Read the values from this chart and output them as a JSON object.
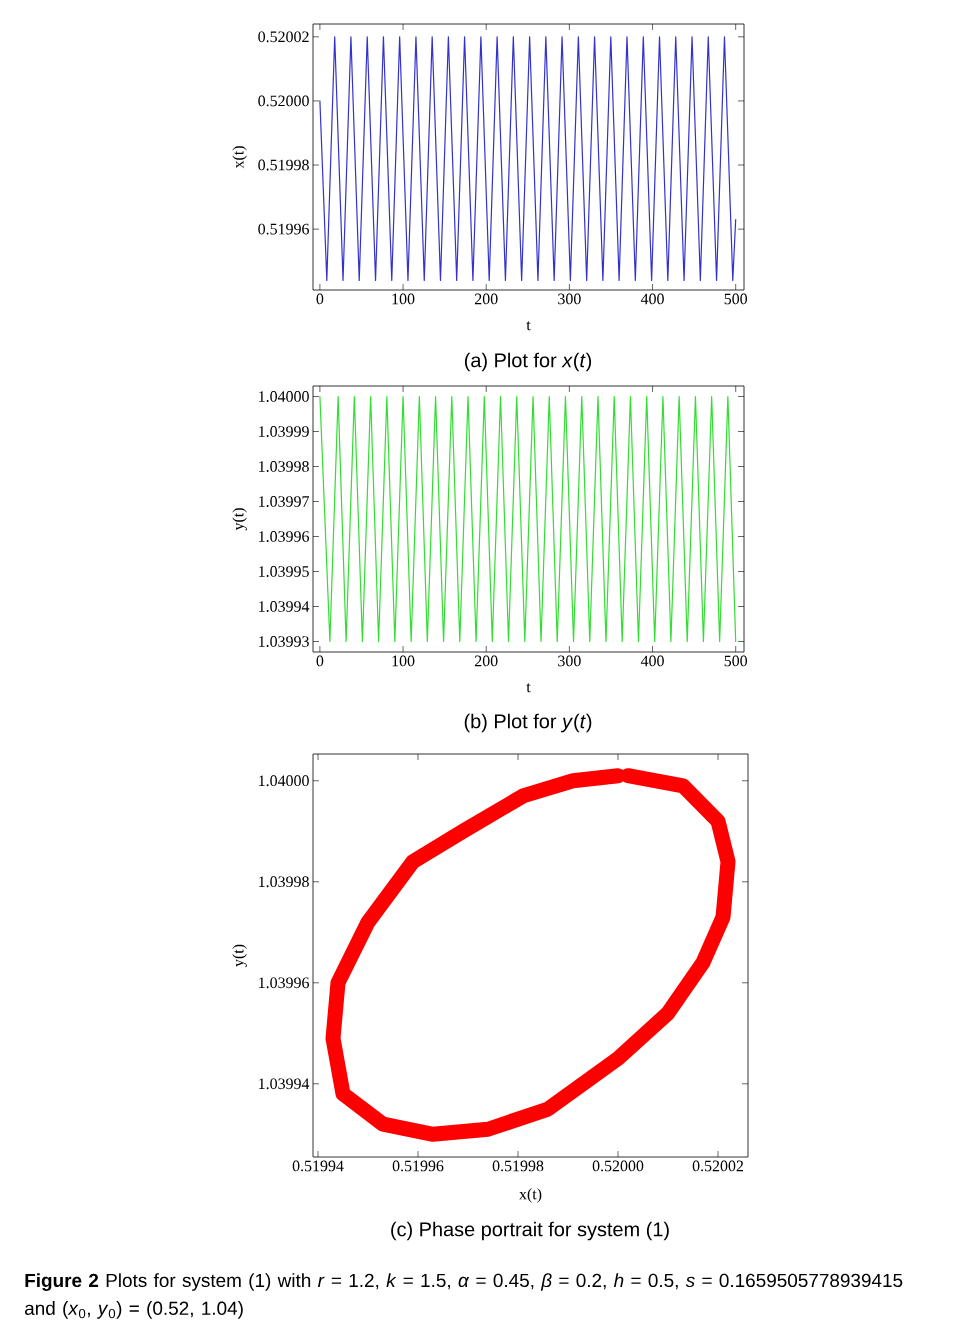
{
  "chart_data": [
    {
      "type": "line",
      "xlabel": "t",
      "ylabel": "x(t)",
      "color": "#3333cc",
      "xlim": [
        -8.3,
        510
      ],
      "ylim": [
        0.519941,
        0.520024
      ],
      "xticks": [
        0,
        100,
        200,
        300,
        400,
        500
      ],
      "yticks": [
        {
          "value": 0.51996,
          "label": "0.51996"
        },
        {
          "value": 0.51998,
          "label": "0.51998"
        },
        {
          "value": 0.52,
          "label": "0.52000"
        },
        {
          "value": 0.52002,
          "label": "0.52002"
        }
      ],
      "x": [
        0,
        8.3,
        17.8,
        27.8,
        37.3,
        47.3,
        56.9,
        66.9,
        76.4,
        86.4,
        95.9,
        105.9,
        115.5,
        125.5,
        135.0,
        145.0,
        154.5,
        164.5,
        174.0,
        184.0,
        193.6,
        203.6,
        213.1,
        223.1,
        232.6,
        242.6,
        252.2,
        262.2,
        271.7,
        281.7,
        291.2,
        301.2,
        310.8,
        320.8,
        330.3,
        340.3,
        349.8,
        359.8,
        369.3,
        379.3,
        388.9,
        398.9,
        408.4,
        418.4,
        427.9,
        437.9,
        447.5,
        457.5,
        467.0,
        477.0,
        486.5,
        496.5,
        500
      ],
      "values": [
        0.52,
        0.519944,
        0.52002,
        0.519944,
        0.52002,
        0.519944,
        0.52002,
        0.519944,
        0.52002,
        0.519944,
        0.52002,
        0.519944,
        0.52002,
        0.519944,
        0.52002,
        0.519944,
        0.52002,
        0.519944,
        0.52002,
        0.519944,
        0.52002,
        0.519944,
        0.52002,
        0.519944,
        0.52002,
        0.519944,
        0.52002,
        0.519944,
        0.52002,
        0.519944,
        0.52002,
        0.519944,
        0.52002,
        0.519944,
        0.52002,
        0.519944,
        0.52002,
        0.519944,
        0.52002,
        0.519944,
        0.52002,
        0.519944,
        0.52002,
        0.519944,
        0.52002,
        0.519944,
        0.52002,
        0.519944,
        0.52002,
        0.519944,
        0.52002,
        0.519944,
        0.519963
      ],
      "annotations": [
        "(a) Plot for *x*(*t*)"
      ]
    },
    {
      "type": "line",
      "xlabel": "t",
      "ylabel": "y(t)",
      "color": "#33dd33",
      "xlim": [
        -8.3,
        510
      ],
      "ylim": [
        1.039927,
        1.040003
      ],
      "xticks": [
        0,
        100,
        200,
        300,
        400,
        500
      ],
      "yticks": [
        {
          "value": 1.03993,
          "label": "1.03993"
        },
        {
          "value": 1.03994,
          "label": "1.03994"
        },
        {
          "value": 1.03995,
          "label": "1.03995"
        },
        {
          "value": 1.03996,
          "label": "1.03996"
        },
        {
          "value": 1.03997,
          "label": "1.03997"
        },
        {
          "value": 1.03998,
          "label": "1.03998"
        },
        {
          "value": 1.03999,
          "label": "1.03999"
        },
        {
          "value": 1.04,
          "label": "1.04000"
        }
      ],
      "x": [
        0,
        12.0,
        21.9,
        31.5,
        41.4,
        51.1,
        61.0,
        70.6,
        80.5,
        90.1,
        100.0,
        109.7,
        119.6,
        129.2,
        139.1,
        148.7,
        158.6,
        168.2,
        178.1,
        187.8,
        197.7,
        207.3,
        217.2,
        226.8,
        236.7,
        246.4,
        256.3,
        265.9,
        275.8,
        285.4,
        295.3,
        305.0,
        314.9,
        324.5,
        334.4,
        344.0,
        353.9,
        363.5,
        373.4,
        383.1,
        393.0,
        402.6,
        412.5,
        422.1,
        432.0,
        441.7,
        451.6,
        461.2,
        471.1,
        480.7,
        490.6,
        500
      ],
      "values": [
        1.04,
        1.03993,
        1.04,
        1.03993,
        1.04,
        1.03993,
        1.04,
        1.03993,
        1.04,
        1.03993,
        1.04,
        1.03993,
        1.04,
        1.03993,
        1.04,
        1.03993,
        1.04,
        1.03993,
        1.04,
        1.03993,
        1.04,
        1.03993,
        1.04,
        1.03993,
        1.04,
        1.03993,
        1.04,
        1.03993,
        1.04,
        1.03993,
        1.04,
        1.03993,
        1.04,
        1.03993,
        1.04,
        1.03993,
        1.04,
        1.03993,
        1.04,
        1.03993,
        1.04,
        1.03993,
        1.04,
        1.03993,
        1.04,
        1.03993,
        1.04,
        1.03993,
        1.04,
        1.03993,
        1.04,
        1.03993
      ],
      "annotations": [
        "(b) Plot for *y*(*t*)"
      ]
    },
    {
      "type": "line",
      "xlabel": "x(t)",
      "ylabel": "y(t)",
      "color": "#ff0000",
      "xlim": [
        0.519939,
        0.520026
      ],
      "ylim": [
        1.0399255,
        1.0400053
      ],
      "xticks": [
        {
          "value": 0.51994,
          "label": "0.51994"
        },
        {
          "value": 0.51996,
          "label": "0.51996"
        },
        {
          "value": 0.51998,
          "label": "0.51998"
        },
        {
          "value": 0.52,
          "label": "0.52000"
        },
        {
          "value": 0.52002,
          "label": "0.52002"
        }
      ],
      "yticks": [
        {
          "value": 1.03994,
          "label": "1.03994"
        },
        {
          "value": 1.03996,
          "label": "1.03996"
        },
        {
          "value": 1.03998,
          "label": "1.03998"
        },
        {
          "value": 1.04,
          "label": "1.04000"
        }
      ],
      "x": [
        0.520002,
        0.520013,
        0.52002,
        0.520022,
        0.520021,
        0.520017,
        0.52001,
        0.52,
        0.519986,
        0.519974,
        0.519963,
        0.519953,
        0.519945,
        0.519943,
        0.519944,
        0.51995,
        0.519959,
        0.519969,
        0.519981,
        0.519991,
        0.52
      ],
      "values": [
        1.040001,
        1.039999,
        1.039992,
        1.039984,
        1.039973,
        1.039964,
        1.039954,
        1.039945,
        1.039935,
        1.039931,
        1.03993,
        1.039932,
        1.039938,
        1.039949,
        1.03996,
        1.039972,
        1.039984,
        1.03999,
        1.039997,
        1.04,
        1.040001
      ],
      "annotations": [
        "(c) Phase portrait for system  (1)",
        "**Figure 2** Plots for system (1) with *r* = 1.2, *k* = 1.5, *α* = 0.45, *β* = 0.2, *h* = 0.5, *s* = 0.1659505778939415 and (*x*$_{0}$, *y*$_{0}$) = (0.52, 1.04)"
      ]
    }
  ]
}
